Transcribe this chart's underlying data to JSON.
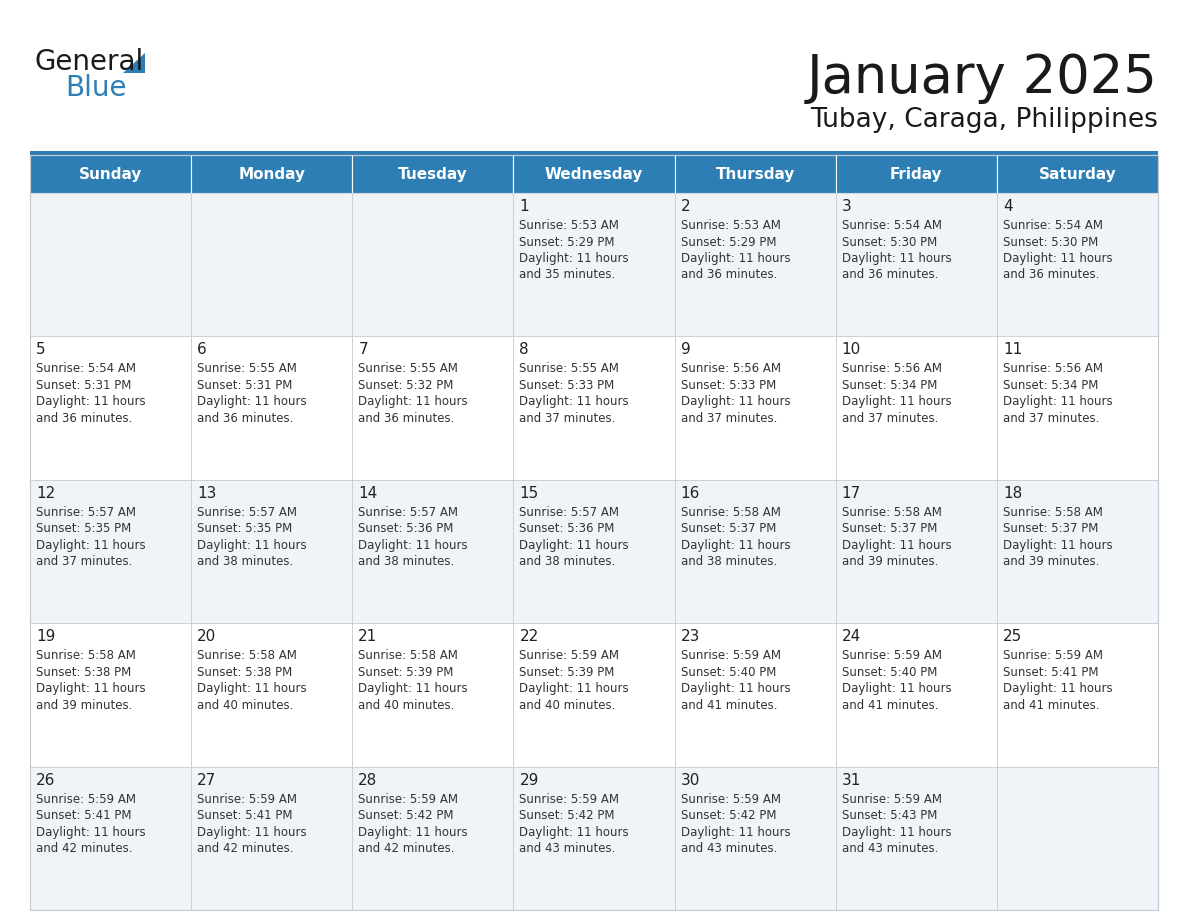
{
  "title": "January 2025",
  "subtitle": "Tubay, Caraga, Philippines",
  "days_of_week": [
    "Sunday",
    "Monday",
    "Tuesday",
    "Wednesday",
    "Thursday",
    "Friday",
    "Saturday"
  ],
  "header_bg": "#2E7EB6",
  "header_text": "#FFFFFF",
  "cell_bg_odd": "#F0F4F8",
  "cell_bg_even": "#FFFFFF",
  "cell_border": "#C0C8D0",
  "day_num_color": "#222222",
  "text_color": "#333333",
  "title_color": "#1a1a1a",
  "logo_general_color": "#1a1a1a",
  "logo_blue_color": "#2E7EB6",
  "calendar_data": [
    [
      {
        "day": 0,
        "sunrise": "",
        "sunset": "",
        "daylight_h": "",
        "daylight_m": ""
      },
      {
        "day": 0,
        "sunrise": "",
        "sunset": "",
        "daylight_h": "",
        "daylight_m": ""
      },
      {
        "day": 0,
        "sunrise": "",
        "sunset": "",
        "daylight_h": "",
        "daylight_m": ""
      },
      {
        "day": 1,
        "sunrise": "5:53 AM",
        "sunset": "5:29 PM",
        "daylight_h": "11 hours",
        "daylight_m": "and 35 minutes."
      },
      {
        "day": 2,
        "sunrise": "5:53 AM",
        "sunset": "5:29 PM",
        "daylight_h": "11 hours",
        "daylight_m": "and 36 minutes."
      },
      {
        "day": 3,
        "sunrise": "5:54 AM",
        "sunset": "5:30 PM",
        "daylight_h": "11 hours",
        "daylight_m": "and 36 minutes."
      },
      {
        "day": 4,
        "sunrise": "5:54 AM",
        "sunset": "5:30 PM",
        "daylight_h": "11 hours",
        "daylight_m": "and 36 minutes."
      }
    ],
    [
      {
        "day": 5,
        "sunrise": "5:54 AM",
        "sunset": "5:31 PM",
        "daylight_h": "11 hours",
        "daylight_m": "and 36 minutes."
      },
      {
        "day": 6,
        "sunrise": "5:55 AM",
        "sunset": "5:31 PM",
        "daylight_h": "11 hours",
        "daylight_m": "and 36 minutes."
      },
      {
        "day": 7,
        "sunrise": "5:55 AM",
        "sunset": "5:32 PM",
        "daylight_h": "11 hours",
        "daylight_m": "and 36 minutes."
      },
      {
        "day": 8,
        "sunrise": "5:55 AM",
        "sunset": "5:33 PM",
        "daylight_h": "11 hours",
        "daylight_m": "and 37 minutes."
      },
      {
        "day": 9,
        "sunrise": "5:56 AM",
        "sunset": "5:33 PM",
        "daylight_h": "11 hours",
        "daylight_m": "and 37 minutes."
      },
      {
        "day": 10,
        "sunrise": "5:56 AM",
        "sunset": "5:34 PM",
        "daylight_h": "11 hours",
        "daylight_m": "and 37 minutes."
      },
      {
        "day": 11,
        "sunrise": "5:56 AM",
        "sunset": "5:34 PM",
        "daylight_h": "11 hours",
        "daylight_m": "and 37 minutes."
      }
    ],
    [
      {
        "day": 12,
        "sunrise": "5:57 AM",
        "sunset": "5:35 PM",
        "daylight_h": "11 hours",
        "daylight_m": "and 37 minutes."
      },
      {
        "day": 13,
        "sunrise": "5:57 AM",
        "sunset": "5:35 PM",
        "daylight_h": "11 hours",
        "daylight_m": "and 38 minutes."
      },
      {
        "day": 14,
        "sunrise": "5:57 AM",
        "sunset": "5:36 PM",
        "daylight_h": "11 hours",
        "daylight_m": "and 38 minutes."
      },
      {
        "day": 15,
        "sunrise": "5:57 AM",
        "sunset": "5:36 PM",
        "daylight_h": "11 hours",
        "daylight_m": "and 38 minutes."
      },
      {
        "day": 16,
        "sunrise": "5:58 AM",
        "sunset": "5:37 PM",
        "daylight_h": "11 hours",
        "daylight_m": "and 38 minutes."
      },
      {
        "day": 17,
        "sunrise": "5:58 AM",
        "sunset": "5:37 PM",
        "daylight_h": "11 hours",
        "daylight_m": "and 39 minutes."
      },
      {
        "day": 18,
        "sunrise": "5:58 AM",
        "sunset": "5:37 PM",
        "daylight_h": "11 hours",
        "daylight_m": "and 39 minutes."
      }
    ],
    [
      {
        "day": 19,
        "sunrise": "5:58 AM",
        "sunset": "5:38 PM",
        "daylight_h": "11 hours",
        "daylight_m": "and 39 minutes."
      },
      {
        "day": 20,
        "sunrise": "5:58 AM",
        "sunset": "5:38 PM",
        "daylight_h": "11 hours",
        "daylight_m": "and 40 minutes."
      },
      {
        "day": 21,
        "sunrise": "5:58 AM",
        "sunset": "5:39 PM",
        "daylight_h": "11 hours",
        "daylight_m": "and 40 minutes."
      },
      {
        "day": 22,
        "sunrise": "5:59 AM",
        "sunset": "5:39 PM",
        "daylight_h": "11 hours",
        "daylight_m": "and 40 minutes."
      },
      {
        "day": 23,
        "sunrise": "5:59 AM",
        "sunset": "5:40 PM",
        "daylight_h": "11 hours",
        "daylight_m": "and 41 minutes."
      },
      {
        "day": 24,
        "sunrise": "5:59 AM",
        "sunset": "5:40 PM",
        "daylight_h": "11 hours",
        "daylight_m": "and 41 minutes."
      },
      {
        "day": 25,
        "sunrise": "5:59 AM",
        "sunset": "5:41 PM",
        "daylight_h": "11 hours",
        "daylight_m": "and 41 minutes."
      }
    ],
    [
      {
        "day": 26,
        "sunrise": "5:59 AM",
        "sunset": "5:41 PM",
        "daylight_h": "11 hours",
        "daylight_m": "and 42 minutes."
      },
      {
        "day": 27,
        "sunrise": "5:59 AM",
        "sunset": "5:41 PM",
        "daylight_h": "11 hours",
        "daylight_m": "and 42 minutes."
      },
      {
        "day": 28,
        "sunrise": "5:59 AM",
        "sunset": "5:42 PM",
        "daylight_h": "11 hours",
        "daylight_m": "and 42 minutes."
      },
      {
        "day": 29,
        "sunrise": "5:59 AM",
        "sunset": "5:42 PM",
        "daylight_h": "11 hours",
        "daylight_m": "and 43 minutes."
      },
      {
        "day": 30,
        "sunrise": "5:59 AM",
        "sunset": "5:42 PM",
        "daylight_h": "11 hours",
        "daylight_m": "and 43 minutes."
      },
      {
        "day": 31,
        "sunrise": "5:59 AM",
        "sunset": "5:43 PM",
        "daylight_h": "11 hours",
        "daylight_m": "and 43 minutes."
      },
      {
        "day": 0,
        "sunrise": "",
        "sunset": "",
        "daylight_h": "",
        "daylight_m": ""
      }
    ]
  ]
}
